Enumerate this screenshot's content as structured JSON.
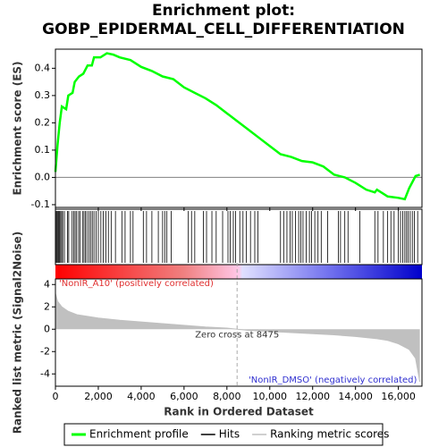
{
  "title": [
    "Enrichment plot:",
    "GOBP_EPIDERMAL_CELL_DIFFERENTIATION"
  ],
  "chart_data": [
    {
      "type": "line",
      "ylabel": "Enrichment score (ES)",
      "xlim": [
        0,
        17100
      ],
      "ylim": [
        -0.11,
        0.47
      ],
      "yticks": [
        -0.1,
        {
          "value": 0,
          "label": "0.0"
        },
        0.1,
        0.2,
        0.3,
        0.4
      ],
      "xticks": [
        0,
        2000,
        4000,
        6000,
        8000,
        10000,
        12000,
        14000,
        16000
      ],
      "series": [
        {
          "name": "Enrichment profile",
          "color": "#00ff00",
          "x": [
            0,
            100,
            200,
            300,
            500,
            600,
            800,
            900,
            1100,
            1300,
            1500,
            1700,
            1800,
            2100,
            2400,
            2700,
            3000,
            3500,
            4000,
            4500,
            5000,
            5500,
            6000,
            6500,
            7000,
            7500,
            8000,
            8500,
            9000,
            9500,
            10000,
            10500,
            11000,
            11500,
            12000,
            12500,
            13000,
            13500,
            14000,
            14500,
            14900,
            15000,
            15500,
            16000,
            16300,
            16500,
            16700,
            16800,
            17000
          ],
          "values": [
            0.02,
            0.12,
            0.2,
            0.26,
            0.25,
            0.3,
            0.31,
            0.35,
            0.37,
            0.38,
            0.41,
            0.41,
            0.44,
            0.44,
            0.455,
            0.45,
            0.44,
            0.43,
            0.405,
            0.39,
            0.37,
            0.36,
            0.33,
            0.31,
            0.29,
            0.265,
            0.235,
            0.205,
            0.175,
            0.145,
            0.115,
            0.085,
            0.075,
            0.06,
            0.055,
            0.04,
            0.01,
            0.0,
            -0.02,
            -0.045,
            -0.055,
            -0.045,
            -0.07,
            -0.075,
            -0.08,
            -0.04,
            -0.01,
            0.005,
            0.01
          ]
        }
      ]
    },
    {
      "type": "rug",
      "xlim": [
        0,
        17100
      ],
      "series": [
        {
          "name": "Hits",
          "color": "#000000",
          "x": [
            20,
            60,
            110,
            150,
            190,
            240,
            290,
            340,
            420,
            560,
            620,
            780,
            850,
            920,
            990,
            1080,
            1150,
            1260,
            1330,
            1400,
            1470,
            1560,
            1640,
            1720,
            1800,
            1900,
            2000,
            2120,
            2230,
            2350,
            2470,
            2600,
            2800,
            3100,
            3250,
            3500,
            3620,
            4100,
            4250,
            4500,
            4800,
            5000,
            5100,
            5200,
            5400,
            6200,
            6350,
            6500,
            6900,
            7050,
            7300,
            7500,
            7800,
            8050,
            8150,
            8300,
            8400,
            8600,
            8750,
            8900,
            9100,
            9300,
            9450,
            10500,
            10650,
            10800,
            10950,
            11050,
            11200,
            11350,
            11450,
            11550,
            11700,
            11850,
            11950,
            12100,
            12250,
            12400,
            12700,
            13200,
            13300,
            13500,
            13650,
            14200,
            14900,
            15050,
            15300,
            15500,
            15650,
            15800,
            16000,
            16100,
            16200,
            16300,
            16380,
            16450,
            16550,
            16650,
            16750,
            16900
          ]
        }
      ]
    },
    {
      "type": "area",
      "xlabel": "Rank in Ordered Dataset",
      "ylabel": "Ranked list metric (Signal2Noise)",
      "xlim": [
        0,
        17100
      ],
      "ylim": [
        -5.1,
        4.5
      ],
      "yticks": [
        -4,
        -2,
        0,
        2,
        4
      ],
      "xticks": [
        0,
        {
          "value": 2000,
          "label": "2,000"
        },
        {
          "value": 4000,
          "label": "4,000"
        },
        {
          "value": 6000,
          "label": "6,000"
        },
        {
          "value": 8000,
          "label": "8,000"
        },
        {
          "value": 10000,
          "label": "10,000"
        },
        {
          "value": 12000,
          "label": "12,000"
        },
        {
          "value": 14000,
          "label": "14,000"
        },
        {
          "value": 16000,
          "label": "16,000"
        }
      ],
      "zero_cross": 8475,
      "annotations": [
        "'NonIR_A10' (positively correlated)",
        "Zero cross at 8475",
        "'NonIR_DMSO' (negatively correlated)"
      ],
      "series": [
        {
          "name": "Ranking metric scores",
          "color": "#c0c0c0",
          "x": [
            0,
            100,
            300,
            600,
            1000,
            2000,
            3000,
            4000,
            5000,
            6000,
            7000,
            8000,
            8475,
            9000,
            10000,
            11000,
            12000,
            13000,
            14000,
            15000,
            15500,
            16000,
            16500,
            16800,
            17000
          ],
          "values": [
            3.2,
            2.5,
            2.0,
            1.6,
            1.3,
            1.0,
            0.8,
            0.65,
            0.5,
            0.35,
            0.2,
            0.1,
            0,
            -0.1,
            -0.2,
            -0.3,
            -0.4,
            -0.5,
            -0.65,
            -0.85,
            -1.0,
            -1.3,
            -1.8,
            -2.6,
            -4.7
          ]
        }
      ]
    }
  ]
}
